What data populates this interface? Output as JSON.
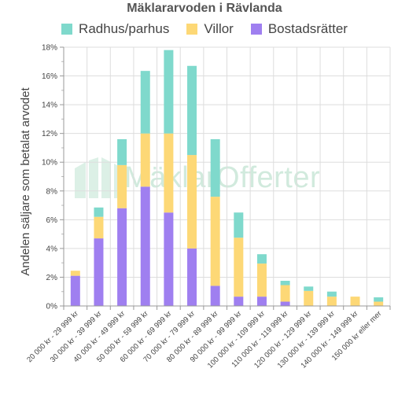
{
  "chart_data": {
    "type": "bar",
    "stacked": true,
    "title": "Mäklararvoden i Rävlanda",
    "ylabel": "Andelen säljare som betalat arvodet",
    "xlabel": "",
    "ylim": [
      0,
      18
    ],
    "yticks": [
      "0%",
      "2%",
      "4%",
      "6%",
      "8%",
      "10%",
      "12%",
      "14%",
      "16%",
      "18%"
    ],
    "grid": true,
    "legend_position": "top",
    "categories": [
      "20 000 kr - 29 999 kr",
      "30 000 kr - 39 999 kr",
      "40 000 kr - 49 999 kr",
      "50 000 kr - 59 999 kr",
      "60 000 kr - 69 999 kr",
      "70 000 kr - 79 999 kr",
      "80 000 kr - 89 999 kr",
      "90 000 kr - 99 999 kr",
      "100 000 kr - 109 999 kr",
      "110 000 kr - 119 999 kr",
      "120 000 kr - 129 999 kr",
      "130 000 kr - 139 999 kr",
      "140 000 kr - 149 999 kr",
      "150 000 kr eller mer"
    ],
    "series": [
      {
        "name": "Bostadsrätter",
        "color": "#9f7ff0",
        "values": [
          2.1,
          4.7,
          6.8,
          8.3,
          6.5,
          4.0,
          1.4,
          0.65,
          0.65,
          0.3,
          0,
          0,
          0,
          0
        ]
      },
      {
        "name": "Villor",
        "color": "#fdd876",
        "values": [
          0.35,
          1.5,
          3.0,
          3.7,
          5.5,
          6.5,
          6.2,
          4.1,
          2.3,
          1.15,
          1.05,
          0.65,
          0.65,
          0.3
        ]
      },
      {
        "name": "Radhus/parhus",
        "color": "#7fd9cc",
        "values": [
          0,
          0.65,
          1.8,
          4.35,
          5.8,
          6.2,
          4.0,
          1.75,
          0.65,
          0.3,
          0.3,
          0.35,
          0,
          0.3
        ]
      }
    ],
    "legend_order": [
      "Radhus/parhus",
      "Villor",
      "Bostadsrätter"
    ]
  },
  "watermark": "MäklarOfferter"
}
